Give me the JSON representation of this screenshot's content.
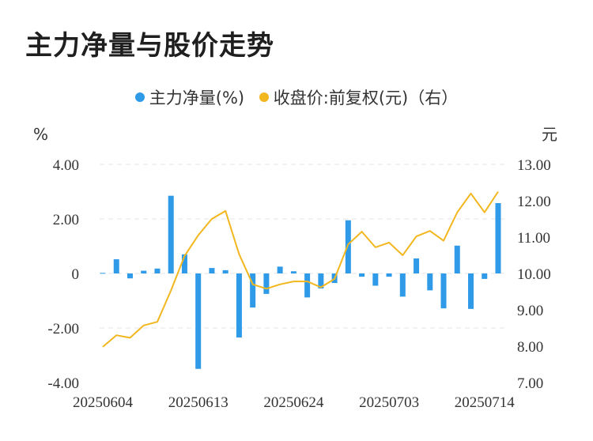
{
  "title": "主力净量与股价走势",
  "legend": {
    "series1": "主力净量(%)",
    "series2": "收盘价:前复权(元)（右）"
  },
  "colors": {
    "bar": "#2f9be8",
    "line": "#f2b71f",
    "grid": "#e6e6e6"
  },
  "chart_data": {
    "type": "bar",
    "title": "主力净量与股价走势",
    "left_unit": "%",
    "right_unit": "元",
    "left_ylim": [
      -4,
      4
    ],
    "right_ylim": [
      7,
      13
    ],
    "left_ticks": [
      "4.00",
      "2.00",
      "0",
      "-2.00",
      "-4.00"
    ],
    "right_ticks": [
      "13.00",
      "12.00",
      "11.00",
      "10.00",
      "9.00",
      "8.00",
      "7.00"
    ],
    "x_tick_labels": [
      {
        "index": 0,
        "label": "20250604"
      },
      {
        "index": 7,
        "label": "20250613"
      },
      {
        "index": 14,
        "label": "20250624"
      },
      {
        "index": 21,
        "label": "20250703"
      },
      {
        "index": 28,
        "label": "20250714"
      }
    ],
    "grid": true,
    "legend_position": "top",
    "series": [
      {
        "name": "主力净量(%)",
        "type": "bar",
        "axis": "left",
        "values": [
          0.02,
          0.52,
          -0.18,
          0.1,
          0.18,
          2.85,
          0.7,
          -3.5,
          0.2,
          0.12,
          -2.35,
          -1.25,
          -0.75,
          0.25,
          0.08,
          -0.88,
          -0.55,
          -0.35,
          1.95,
          -0.12,
          -0.45,
          -0.12,
          -0.85,
          0.55,
          -0.62,
          -1.28,
          1.02,
          -1.3,
          -0.2,
          2.58
        ]
      },
      {
        "name": "收盘价:前复权(元)（右）",
        "type": "line",
        "axis": "right",
        "values": [
          7.98,
          8.3,
          8.23,
          8.57,
          8.67,
          9.53,
          10.48,
          11.05,
          11.5,
          11.72,
          10.53,
          9.7,
          9.58,
          9.7,
          9.78,
          9.78,
          9.62,
          9.85,
          10.8,
          11.15,
          10.72,
          10.85,
          10.5,
          11.02,
          11.17,
          10.9,
          11.68,
          12.2,
          11.68,
          12.25
        ]
      }
    ]
  }
}
